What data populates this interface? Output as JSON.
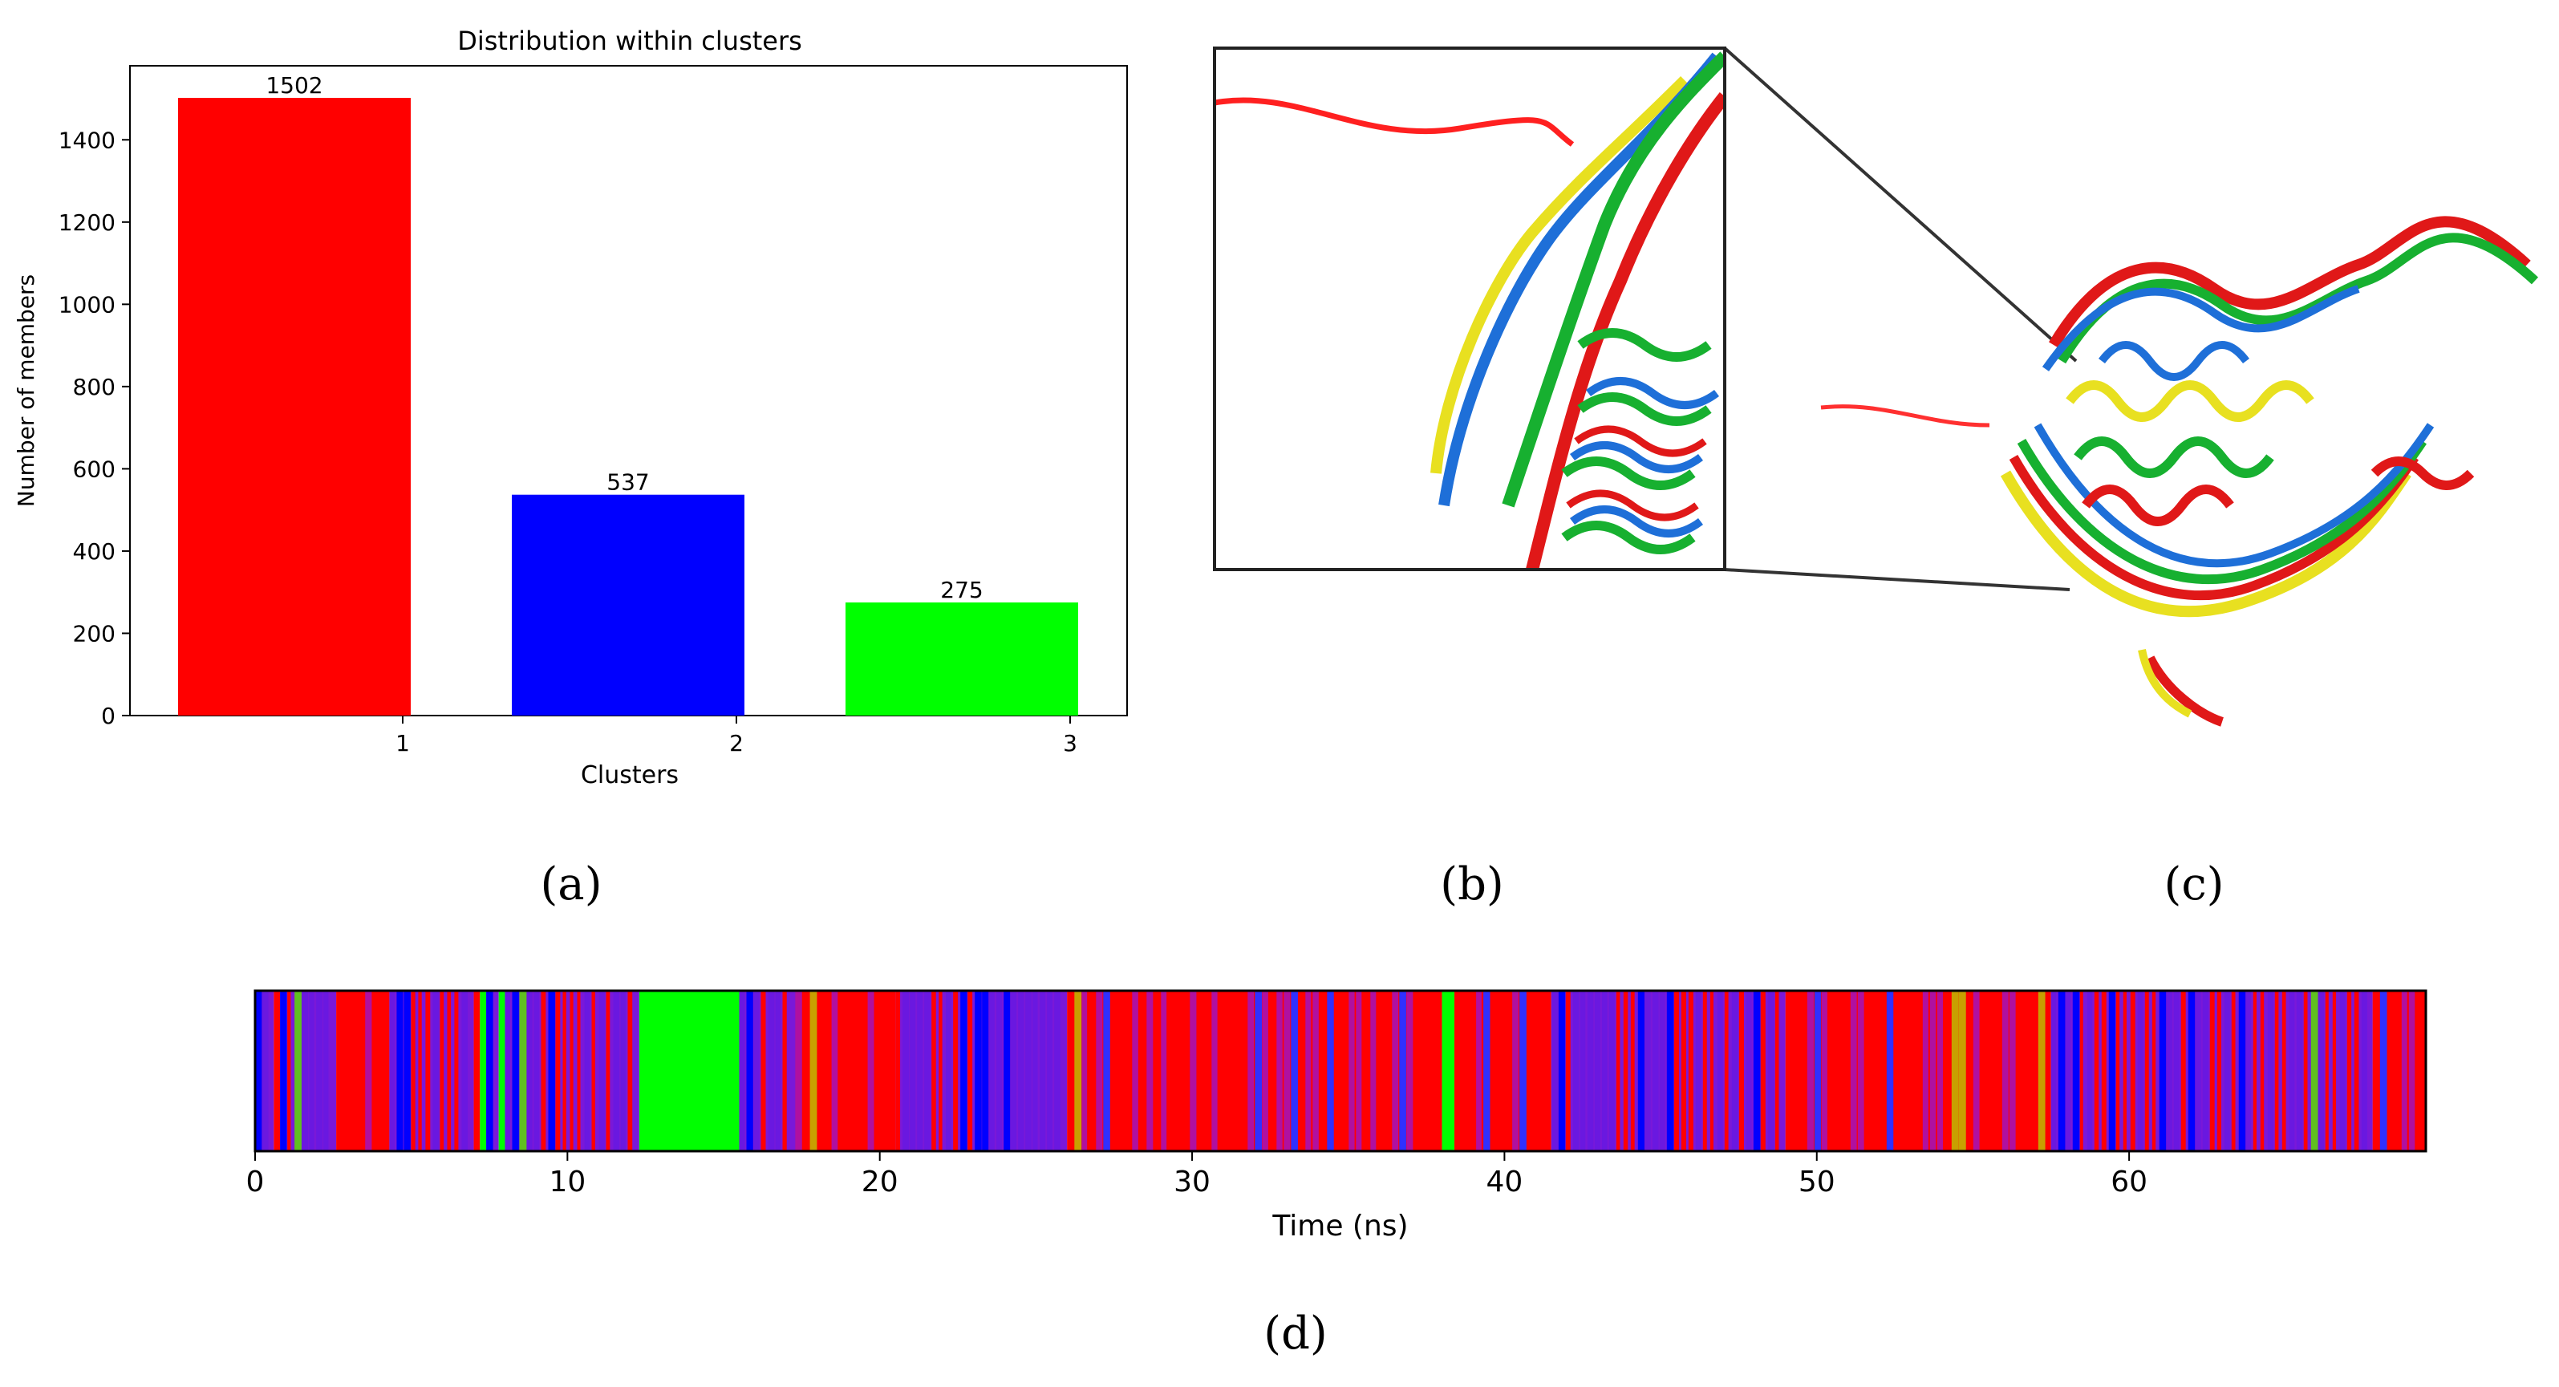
{
  "panel_labels": {
    "a": "(a)",
    "b": "(b)",
    "c": "(c)",
    "d": "(d)"
  },
  "colors": {
    "cluster1": "#ff0000",
    "cluster2": "#0000ff",
    "cluster3": "#00ff00",
    "purple": "#8a1fd0",
    "yellow": "#e8e020"
  },
  "chart_data": [
    {
      "type": "bar",
      "title": "Distribution within clusters",
      "xlabel": "Clusters",
      "ylabel": "Number of members",
      "categories": [
        "1",
        "2",
        "3"
      ],
      "values": [
        1502,
        537,
        275
      ],
      "data_labels": [
        "1502",
        "537",
        "275"
      ],
      "bar_colors": [
        "#ff0000",
        "#0000ff",
        "#00ff00"
      ],
      "ylim": [
        0,
        1580
      ],
      "yticks": [
        0,
        200,
        400,
        600,
        800,
        1000,
        1200,
        1400
      ],
      "grid": false,
      "legend": "none"
    },
    {
      "type": "heatmap",
      "xlabel": "Time (ns)",
      "xlim": [
        0,
        69.5
      ],
      "xticks": [
        0,
        10,
        20,
        30,
        40,
        50,
        60
      ],
      "description_colors": [
        "#ff0000",
        "#0000ff",
        "#00ff00"
      ],
      "segments": [
        {
          "start": 0.0,
          "end": 0.6,
          "cluster": 2
        },
        {
          "start": 0.6,
          "end": 0.8,
          "cluster": 1
        },
        {
          "start": 0.8,
          "end": 2.6,
          "cluster": 2
        },
        {
          "start": 2.6,
          "end": 4.3,
          "cluster": 1
        },
        {
          "start": 4.3,
          "end": 7.0,
          "cluster": 2
        },
        {
          "start": 7.0,
          "end": 7.2,
          "cluster": 1
        },
        {
          "start": 7.2,
          "end": 7.4,
          "cluster": 3
        },
        {
          "start": 7.4,
          "end": 7.8,
          "cluster": 2
        },
        {
          "start": 7.8,
          "end": 8.0,
          "cluster": 3
        },
        {
          "start": 8.0,
          "end": 12.3,
          "cluster": 2
        },
        {
          "start": 12.3,
          "end": 15.5,
          "cluster": 3
        },
        {
          "start": 15.5,
          "end": 17.3,
          "cluster": 2
        },
        {
          "start": 17.3,
          "end": 20.5,
          "cluster": 1
        },
        {
          "start": 20.5,
          "end": 26.0,
          "cluster": 2
        },
        {
          "start": 26.0,
          "end": 38.0,
          "cluster": 1
        },
        {
          "start": 38.0,
          "end": 38.4,
          "cluster": 3
        },
        {
          "start": 38.4,
          "end": 41.5,
          "cluster": 1
        },
        {
          "start": 41.5,
          "end": 49.0,
          "cluster": 2
        },
        {
          "start": 49.0,
          "end": 57.5,
          "cluster": 1
        },
        {
          "start": 57.5,
          "end": 67.8,
          "cluster": 2
        },
        {
          "start": 67.8,
          "end": 69.5,
          "cluster": 1
        }
      ]
    }
  ]
}
